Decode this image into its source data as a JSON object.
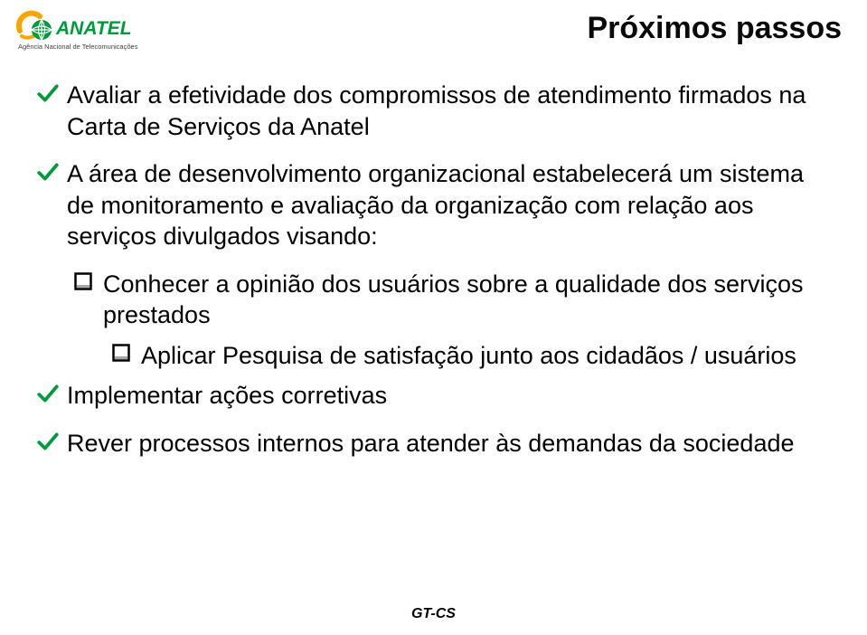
{
  "logo": {
    "main_text": "ANATEL",
    "sub_text": "Agência Nacional de Telecomunicações",
    "arc_color": "#f7a600",
    "globe_color": "#009a3d",
    "text_color": "#009a3d",
    "sub_text_color": "#404040"
  },
  "title": {
    "text": "Próximos passos",
    "color": "#0a0a0a",
    "fontsize": 34
  },
  "bullets": {
    "check_color": "#009a3d",
    "box_color": "#000000",
    "lvl1_fontsize": 27,
    "lvl2_fontsize": 27,
    "lvl3_fontsize": 27,
    "items": [
      {
        "level": 1,
        "text": "Avaliar a efetividade dos compromissos de atendimento firmados na Carta de Serviços da Anatel"
      },
      {
        "level": 1,
        "text": "A área de desenvolvimento organizacional estabelecerá um sistema de monitoramento e avaliação da organização com relação aos serviços divulgados visando:"
      },
      {
        "level": 2,
        "text": "Conhecer a opinião dos usuários sobre a qualidade dos serviços prestados"
      },
      {
        "level": 3,
        "text": "Aplicar Pesquisa de satisfação junto aos cidadãos / usuários"
      },
      {
        "level": 1,
        "text": "Implementar ações corretivas"
      },
      {
        "level": 1,
        "text": "Rever processos internos para atender às demandas da sociedade"
      }
    ]
  },
  "footer": {
    "text": "GT-CS",
    "fontsize": 16
  }
}
